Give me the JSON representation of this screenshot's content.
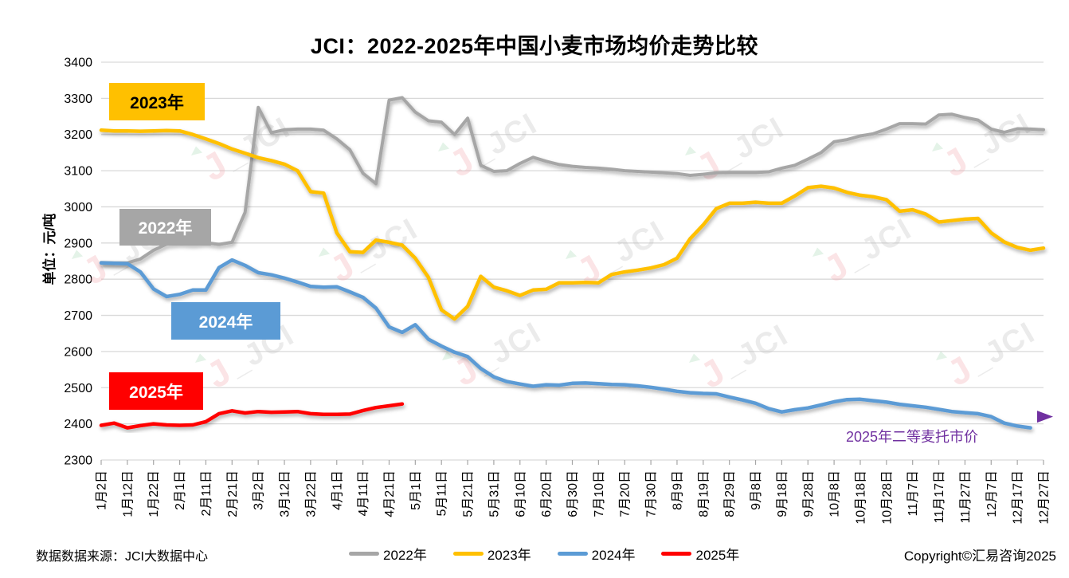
{
  "title": "JCI：2022-2025年中国小麦市场均价走势比较",
  "y_axis_title": "单位：元/吨",
  "series_labels": [
    {
      "text": "2023年",
      "bg": "#FFC000",
      "fg": "#000000"
    },
    {
      "text": "2022年",
      "bg": "#A6A6A6",
      "fg": "#FFFFFF"
    },
    {
      "text": "2024年",
      "bg": "#5B9BD5",
      "fg": "#FFFFFF"
    },
    {
      "text": "2025年",
      "bg": "#FF0000",
      "fg": "#FFFFFF"
    }
  ],
  "annotation": {
    "text": "2025年二等麦托市价",
    "color": "#7030A0"
  },
  "footer": {
    "source": "数据数据来源：JCI大数据中心",
    "copyright": "Copyright©汇易咨询2025"
  },
  "watermark": {
    "logo_text": "_JCI",
    "pink": "#F2A7AD",
    "gray": "#BFBFBF",
    "green": "#A8D8B5"
  },
  "chart_data": {
    "type": "line",
    "title": "JCI：2022-2025年中国小麦市场均价走势比较",
    "ylabel": "单位：元/吨",
    "ylim": [
      2300,
      3400
    ],
    "y_tick_step": 100,
    "grid": "horizontal",
    "legend_position": "bottom",
    "x_interval_days": 5,
    "x_tick_labels": [
      "1月2日",
      "1月12日",
      "1月22日",
      "2月1日",
      "2月11日",
      "2月21日",
      "3月2日",
      "3月12日",
      "3月22日",
      "4月1日",
      "4月11日",
      "4月21日",
      "5月1日",
      "5月11日",
      "5月21日",
      "5月31日",
      "6月10日",
      "6月20日",
      "6月30日",
      "7月10日",
      "7月20日",
      "7月30日",
      "8月9日",
      "8月19日",
      "8月29日",
      "9月8日",
      "9月18日",
      "9月28日",
      "10月8日",
      "10月18日",
      "10月28日",
      "11月7日",
      "11月17日",
      "11月27日",
      "12月7日",
      "12月17日",
      "12月27日"
    ],
    "series": [
      {
        "name": "2022年",
        "color": "#A6A6A6",
        "values": [
          2846,
          2845,
          2845,
          2856,
          2880,
          2897,
          2900,
          2898,
          2901,
          2896,
          2902,
          2985,
          3275,
          3205,
          3213,
          3215,
          3215,
          3212,
          3188,
          3158,
          3093,
          3064,
          3295,
          3302,
          3262,
          3238,
          3234,
          3200,
          3245,
          3115,
          3098,
          3100,
          3120,
          3137,
          3126,
          3117,
          3112,
          3109,
          3107,
          3104,
          3100,
          3098,
          3096,
          3094,
          3092,
          3087,
          3090,
          3094,
          3095,
          3095,
          3095,
          3097,
          3107,
          3115,
          3132,
          3150,
          3180,
          3186,
          3196,
          3202,
          3215,
          3230,
          3230,
          3229,
          3254,
          3256,
          3247,
          3240,
          3215,
          3206,
          3216,
          3215,
          3213
        ]
      },
      {
        "name": "2023年",
        "color": "#FFC000",
        "values": [
          3212,
          3210,
          3210,
          3209,
          3210,
          3211,
          3210,
          3200,
          3188,
          3175,
          3160,
          3148,
          3136,
          3128,
          3118,
          3100,
          3042,
          3038,
          2928,
          2876,
          2874,
          2908,
          2902,
          2894,
          2858,
          2805,
          2715,
          2690,
          2725,
          2808,
          2778,
          2768,
          2755,
          2770,
          2772,
          2790,
          2790,
          2791,
          2790,
          2813,
          2820,
          2825,
          2831,
          2840,
          2858,
          2912,
          2950,
          2995,
          3010,
          3010,
          3013,
          3010,
          3010,
          3030,
          3053,
          3057,
          3052,
          3040,
          3032,
          3028,
          3020,
          2988,
          2992,
          2980,
          2958,
          2962,
          2966,
          2968,
          2928,
          2903,
          2888,
          2880,
          2886
        ]
      },
      {
        "name": "2024年",
        "color": "#5B9BD5",
        "values": [
          2845,
          2844,
          2843,
          2820,
          2773,
          2752,
          2758,
          2770,
          2770,
          2832,
          2853,
          2838,
          2818,
          2812,
          2803,
          2792,
          2780,
          2778,
          2779,
          2765,
          2750,
          2720,
          2668,
          2653,
          2674,
          2634,
          2615,
          2598,
          2586,
          2553,
          2530,
          2517,
          2510,
          2504,
          2508,
          2507,
          2512,
          2513,
          2511,
          2509,
          2508,
          2505,
          2501,
          2496,
          2490,
          2486,
          2484,
          2483,
          2474,
          2466,
          2457,
          2442,
          2433,
          2439,
          2444,
          2452,
          2461,
          2467,
          2468,
          2464,
          2460,
          2454,
          2450,
          2446,
          2440,
          2434,
          2431,
          2428,
          2420,
          2402,
          2394,
          2389,
          null
        ]
      },
      {
        "name": "2025年",
        "color": "#FF0000",
        "values": [
          2396,
          2402,
          2389,
          2395,
          2400,
          2397,
          2396,
          2397,
          2406,
          2428,
          2436,
          2430,
          2434,
          2432,
          2433,
          2434,
          2428,
          2426,
          2426,
          2427,
          2437,
          2445,
          2450,
          2455,
          null,
          null,
          null,
          null,
          null,
          null,
          null,
          null,
          null,
          null,
          null,
          null,
          null,
          null,
          null,
          null,
          null,
          null,
          null,
          null,
          null,
          null,
          null,
          null,
          null,
          null,
          null,
          null,
          null,
          null,
          null,
          null,
          null,
          null,
          null,
          null,
          null,
          null,
          null,
          null,
          null,
          null,
          null,
          null,
          null,
          null,
          null,
          null,
          null
        ]
      }
    ],
    "reference_line": {
      "label": "2025年二等麦托市价",
      "value": 2420,
      "color": "#7030A0"
    }
  }
}
